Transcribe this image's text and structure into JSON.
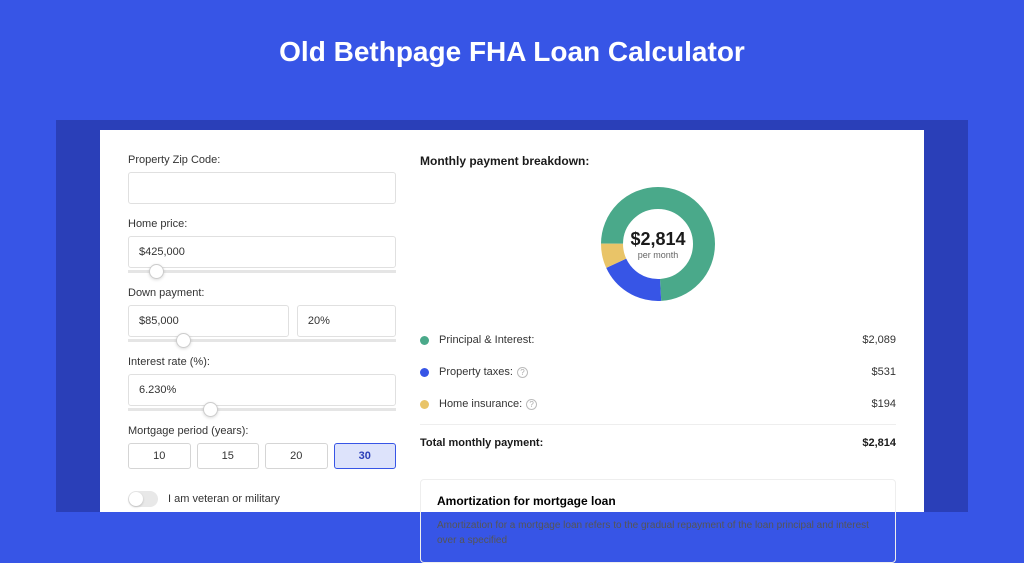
{
  "page": {
    "title": "Old Bethpage FHA Loan Calculator",
    "bg_color": "#3755e6",
    "backdrop_color": "#2a3fb8",
    "card_bg": "#ffffff"
  },
  "form": {
    "zip": {
      "label": "Property Zip Code:",
      "value": ""
    },
    "home_price": {
      "label": "Home price:",
      "value": "$425,000",
      "slider_pct": 8
    },
    "down_payment": {
      "label": "Down payment:",
      "amount": "$85,000",
      "pct": "20%",
      "slider_pct": 18
    },
    "interest": {
      "label": "Interest rate (%):",
      "value": "6.230%",
      "slider_pct": 28
    },
    "period": {
      "label": "Mortgage period (years):",
      "options": [
        "10",
        "15",
        "20",
        "30"
      ],
      "selected": 3
    },
    "veteran": {
      "label": "I am veteran or military",
      "on": false
    }
  },
  "breakdown": {
    "title": "Monthly payment breakdown:",
    "donut": {
      "type": "donut",
      "amount": "$2,814",
      "sub": "per month",
      "stroke_width": 22,
      "bg": "#ffffff",
      "slices": [
        {
          "label": "Principal & Interest:",
          "value": "$2,089",
          "color": "#4aa98a",
          "pct": 74,
          "has_info": false
        },
        {
          "label": "Property taxes:",
          "value": "$531",
          "color": "#3755e6",
          "pct": 19,
          "has_info": true
        },
        {
          "label": "Home insurance:",
          "value": "$194",
          "color": "#e9c468",
          "pct": 7,
          "has_info": true
        }
      ]
    },
    "total": {
      "label": "Total monthly payment:",
      "value": "$2,814"
    }
  },
  "amort": {
    "title": "Amortization for mortgage loan",
    "text": "Amortization for a mortgage loan refers to the gradual repayment of the loan principal and interest over a specified"
  }
}
